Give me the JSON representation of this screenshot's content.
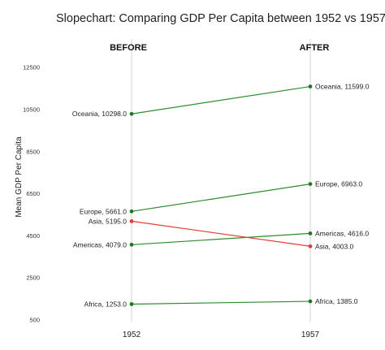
{
  "chart_data": {
    "type": "line",
    "title": "Slopechart: Comparing GDP Per Capita between 1952 vs 1957",
    "xlabel": "",
    "ylabel": "Mean GDP Per Capita",
    "x": [
      "1952",
      "1957"
    ],
    "column_headers": [
      "BEFORE",
      "AFTER"
    ],
    "ylim": [
      500,
      13301
    ],
    "yticks": [
      500,
      2500,
      4500,
      6500,
      8500,
      10500,
      12500
    ],
    "grid": false,
    "legend": "none",
    "series": [
      {
        "name": "Africa",
        "values": [
          1253.0,
          1385.0
        ],
        "labels": [
          "Africa, 1253.0",
          "Africa, 1385.0"
        ],
        "color": "#2e8b2e"
      },
      {
        "name": "Americas",
        "values": [
          4079.0,
          4616.0
        ],
        "labels": [
          "Americas, 4079.0",
          "Americas, 4616.0"
        ],
        "color": "#2e8b2e"
      },
      {
        "name": "Asia",
        "values": [
          5195.0,
          4003.0
        ],
        "labels": [
          "Asia, 5195.0",
          "Asia, 4003.0"
        ],
        "color": "#e23b3b"
      },
      {
        "name": "Europe",
        "values": [
          5661.0,
          6963.0
        ],
        "labels": [
          "Europe, 5661.0",
          "Europe, 6963.0"
        ],
        "color": "#2e8b2e"
      },
      {
        "name": "Oceania",
        "values": [
          10298.0,
          11599.0
        ],
        "labels": [
          "Oceania, 10298.0",
          "Oceania, 11599.0"
        ],
        "color": "#2e8b2e"
      }
    ],
    "colors": {
      "increase": "#2e8b2e",
      "decrease": "#e23b3b",
      "column_line": "#d0d0d0"
    }
  }
}
